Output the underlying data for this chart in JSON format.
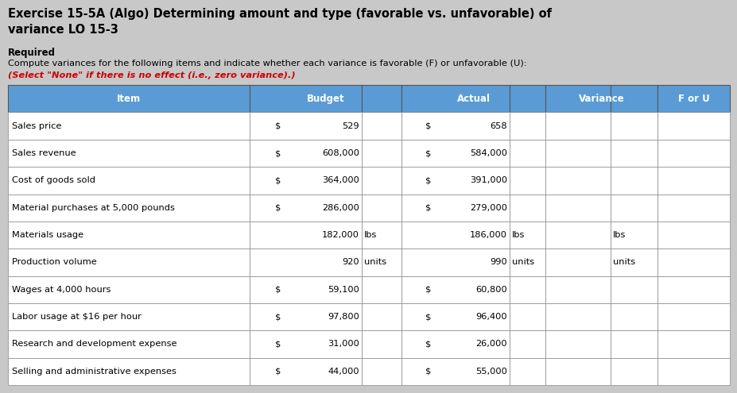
{
  "title_line1": "Exercise 15-5A (Algo) Determining amount and type (favorable vs. unfavorable) of",
  "title_line2": "variance LO 15-3",
  "required_label": "Required",
  "instruction_line1": "Compute variances for the following items and indicate whether each variance is favorable (F) or unfavorable (U):",
  "instruction_line2": "(Select \"None\" if there is no effect (i.e., zero variance).)",
  "header": [
    "Item",
    "Budget",
    "Actual",
    "Variance",
    "F or U"
  ],
  "rows": [
    {
      "item": "Sales price",
      "budget": "$",
      "budget_val": "529",
      "budget_suffix": "",
      "actual": "$",
      "actual_val": "658",
      "actual_suffix": "",
      "var_suffix": ""
    },
    {
      "item": "Sales revenue",
      "budget": "$",
      "budget_val": "608,000",
      "budget_suffix": "",
      "actual": "$",
      "actual_val": "584,000",
      "actual_suffix": "",
      "var_suffix": ""
    },
    {
      "item": "Cost of goods sold",
      "budget": "$",
      "budget_val": "364,000",
      "budget_suffix": "",
      "actual": "$",
      "actual_val": "391,000",
      "actual_suffix": "",
      "var_suffix": ""
    },
    {
      "item": "Material purchases at 5,000 pounds",
      "budget": "$",
      "budget_val": "286,000",
      "budget_suffix": "",
      "actual": "$",
      "actual_val": "279,000",
      "actual_suffix": "",
      "var_suffix": ""
    },
    {
      "item": "Materials usage",
      "budget": "",
      "budget_val": "182,000",
      "budget_suffix": "lbs",
      "actual": "",
      "actual_val": "186,000",
      "actual_suffix": "lbs",
      "var_suffix": "lbs"
    },
    {
      "item": "Production volume",
      "budget": "",
      "budget_val": "920",
      "budget_suffix": "units",
      "actual": "",
      "actual_val": "990",
      "actual_suffix": "units",
      "var_suffix": "units"
    },
    {
      "item": "Wages at 4,000 hours",
      "budget": "$",
      "budget_val": "59,100",
      "budget_suffix": "",
      "actual": "$",
      "actual_val": "60,800",
      "actual_suffix": "",
      "var_suffix": ""
    },
    {
      "item": "Labor usage at $16 per hour",
      "budget": "$",
      "budget_val": "97,800",
      "budget_suffix": "",
      "actual": "$",
      "actual_val": "96,400",
      "actual_suffix": "",
      "var_suffix": ""
    },
    {
      "item": "Research and development expense",
      "budget": "$",
      "budget_val": "31,000",
      "budget_suffix": "",
      "actual": "$",
      "actual_val": "26,000",
      "actual_suffix": "",
      "var_suffix": ""
    },
    {
      "item": "Selling and administrative expenses",
      "budget": "$",
      "budget_val": "44,000",
      "budget_suffix": "",
      "actual": "$",
      "actual_val": "55,000",
      "actual_suffix": "",
      "var_suffix": ""
    }
  ],
  "header_bg": "#5b9bd5",
  "header_text_color": "#ffffff",
  "row_bg": "#ffffff",
  "grid_color": "#999999",
  "title_fontsize": 10.5,
  "body_fontsize": 8.2,
  "header_fontsize": 8.5,
  "instruction_fontsize": 8.2,
  "background_color": "#c8c8c8"
}
